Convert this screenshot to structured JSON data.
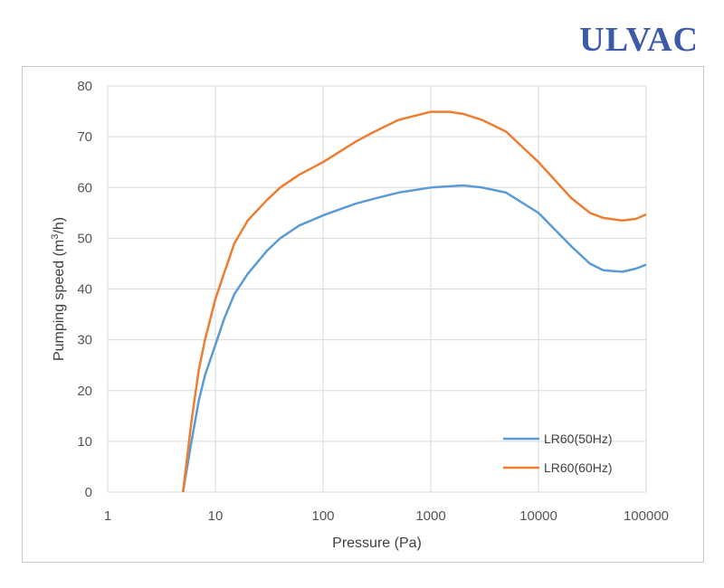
{
  "logo_text": "ULVAC",
  "chart_data": {
    "type": "line",
    "xlabel": "Pressure (Pa)",
    "ylabel_parts": [
      "Pumping speed (m",
      "3",
      "/h)"
    ],
    "xscale": "log",
    "xlim": [
      1,
      100000
    ],
    "ylim": [
      0,
      80
    ],
    "xticks": [
      1,
      10,
      100,
      1000,
      10000,
      100000
    ],
    "xtick_labels": [
      "1",
      "10",
      "100",
      "1000",
      "10000",
      "100000"
    ],
    "yticks": [
      0,
      10,
      20,
      30,
      40,
      50,
      60,
      70,
      80
    ],
    "ytick_labels": [
      "0",
      "10",
      "20",
      "30",
      "40",
      "50",
      "60",
      "70",
      "80"
    ],
    "grid": "horizontal",
    "legend_position": "bottom-right",
    "series": [
      {
        "name": "LR60(50Hz)",
        "color": "#5b9bd5",
        "points": [
          [
            5,
            0
          ],
          [
            6,
            10
          ],
          [
            7,
            18
          ],
          [
            8,
            23
          ],
          [
            10,
            29
          ],
          [
            12,
            34
          ],
          [
            15,
            39
          ],
          [
            20,
            43
          ],
          [
            30,
            47.5
          ],
          [
            40,
            50
          ],
          [
            60,
            52.5
          ],
          [
            100,
            54.5
          ],
          [
            200,
            56.8
          ],
          [
            300,
            57.8
          ],
          [
            500,
            59
          ],
          [
            1000,
            60
          ],
          [
            2000,
            60.4
          ],
          [
            3000,
            60
          ],
          [
            5000,
            59
          ],
          [
            10000,
            55
          ],
          [
            20000,
            48.5
          ],
          [
            30000,
            45
          ],
          [
            40000,
            43.7
          ],
          [
            60000,
            43.4
          ],
          [
            80000,
            44
          ],
          [
            100000,
            44.8
          ]
        ]
      },
      {
        "name": "LR60(60Hz)",
        "color": "#ed7d31",
        "points": [
          [
            5,
            0
          ],
          [
            6,
            14
          ],
          [
            7,
            24
          ],
          [
            8,
            30
          ],
          [
            10,
            38
          ],
          [
            12,
            43
          ],
          [
            15,
            49
          ],
          [
            20,
            53.5
          ],
          [
            30,
            57.5
          ],
          [
            40,
            60
          ],
          [
            60,
            62.5
          ],
          [
            100,
            65
          ],
          [
            200,
            69
          ],
          [
            300,
            71
          ],
          [
            500,
            73.3
          ],
          [
            1000,
            74.9
          ],
          [
            1500,
            74.9
          ],
          [
            2000,
            74.5
          ],
          [
            3000,
            73.3
          ],
          [
            5000,
            71
          ],
          [
            10000,
            65
          ],
          [
            20000,
            58
          ],
          [
            30000,
            55
          ],
          [
            40000,
            54
          ],
          [
            60000,
            53.5
          ],
          [
            80000,
            53.8
          ],
          [
            100000,
            54.7
          ]
        ]
      }
    ]
  }
}
